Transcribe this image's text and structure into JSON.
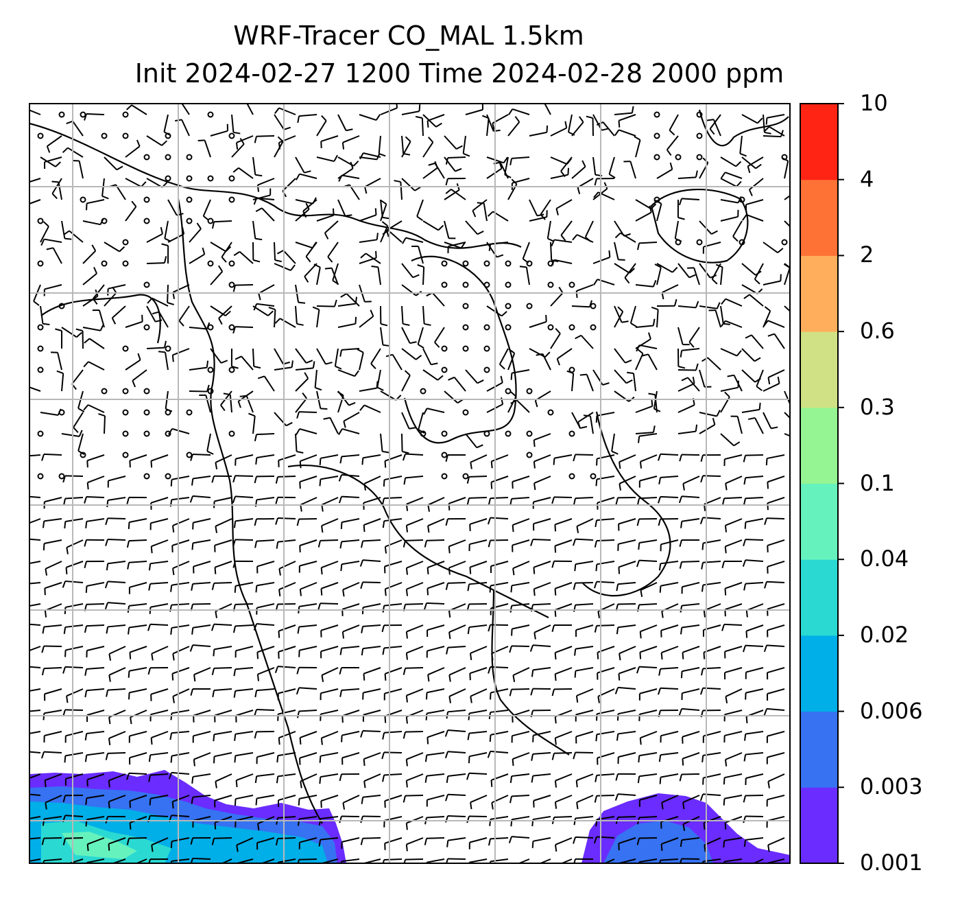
{
  "title": {
    "line1": "WRF-Tracer CO_MAL 1.5km",
    "line2": "Init 2024-02-27 1200 Time 2024-02-28 2000 ppm"
  },
  "colorbar": {
    "levels": [
      "0.001",
      "0.003",
      "0.006",
      "0.02",
      "0.04",
      "0.1",
      "0.3",
      "0.6",
      "2",
      "4",
      "10"
    ],
    "colors": [
      "#6a2cff",
      "#3672f2",
      "#00aee8",
      "#2ad9d2",
      "#66f2bd",
      "#95f592",
      "#d0e185",
      "#ffae5c",
      "#ff7236",
      "#ff2413"
    ]
  },
  "map": {
    "grid": true,
    "wind_barbs": true,
    "coastlines": true
  }
}
